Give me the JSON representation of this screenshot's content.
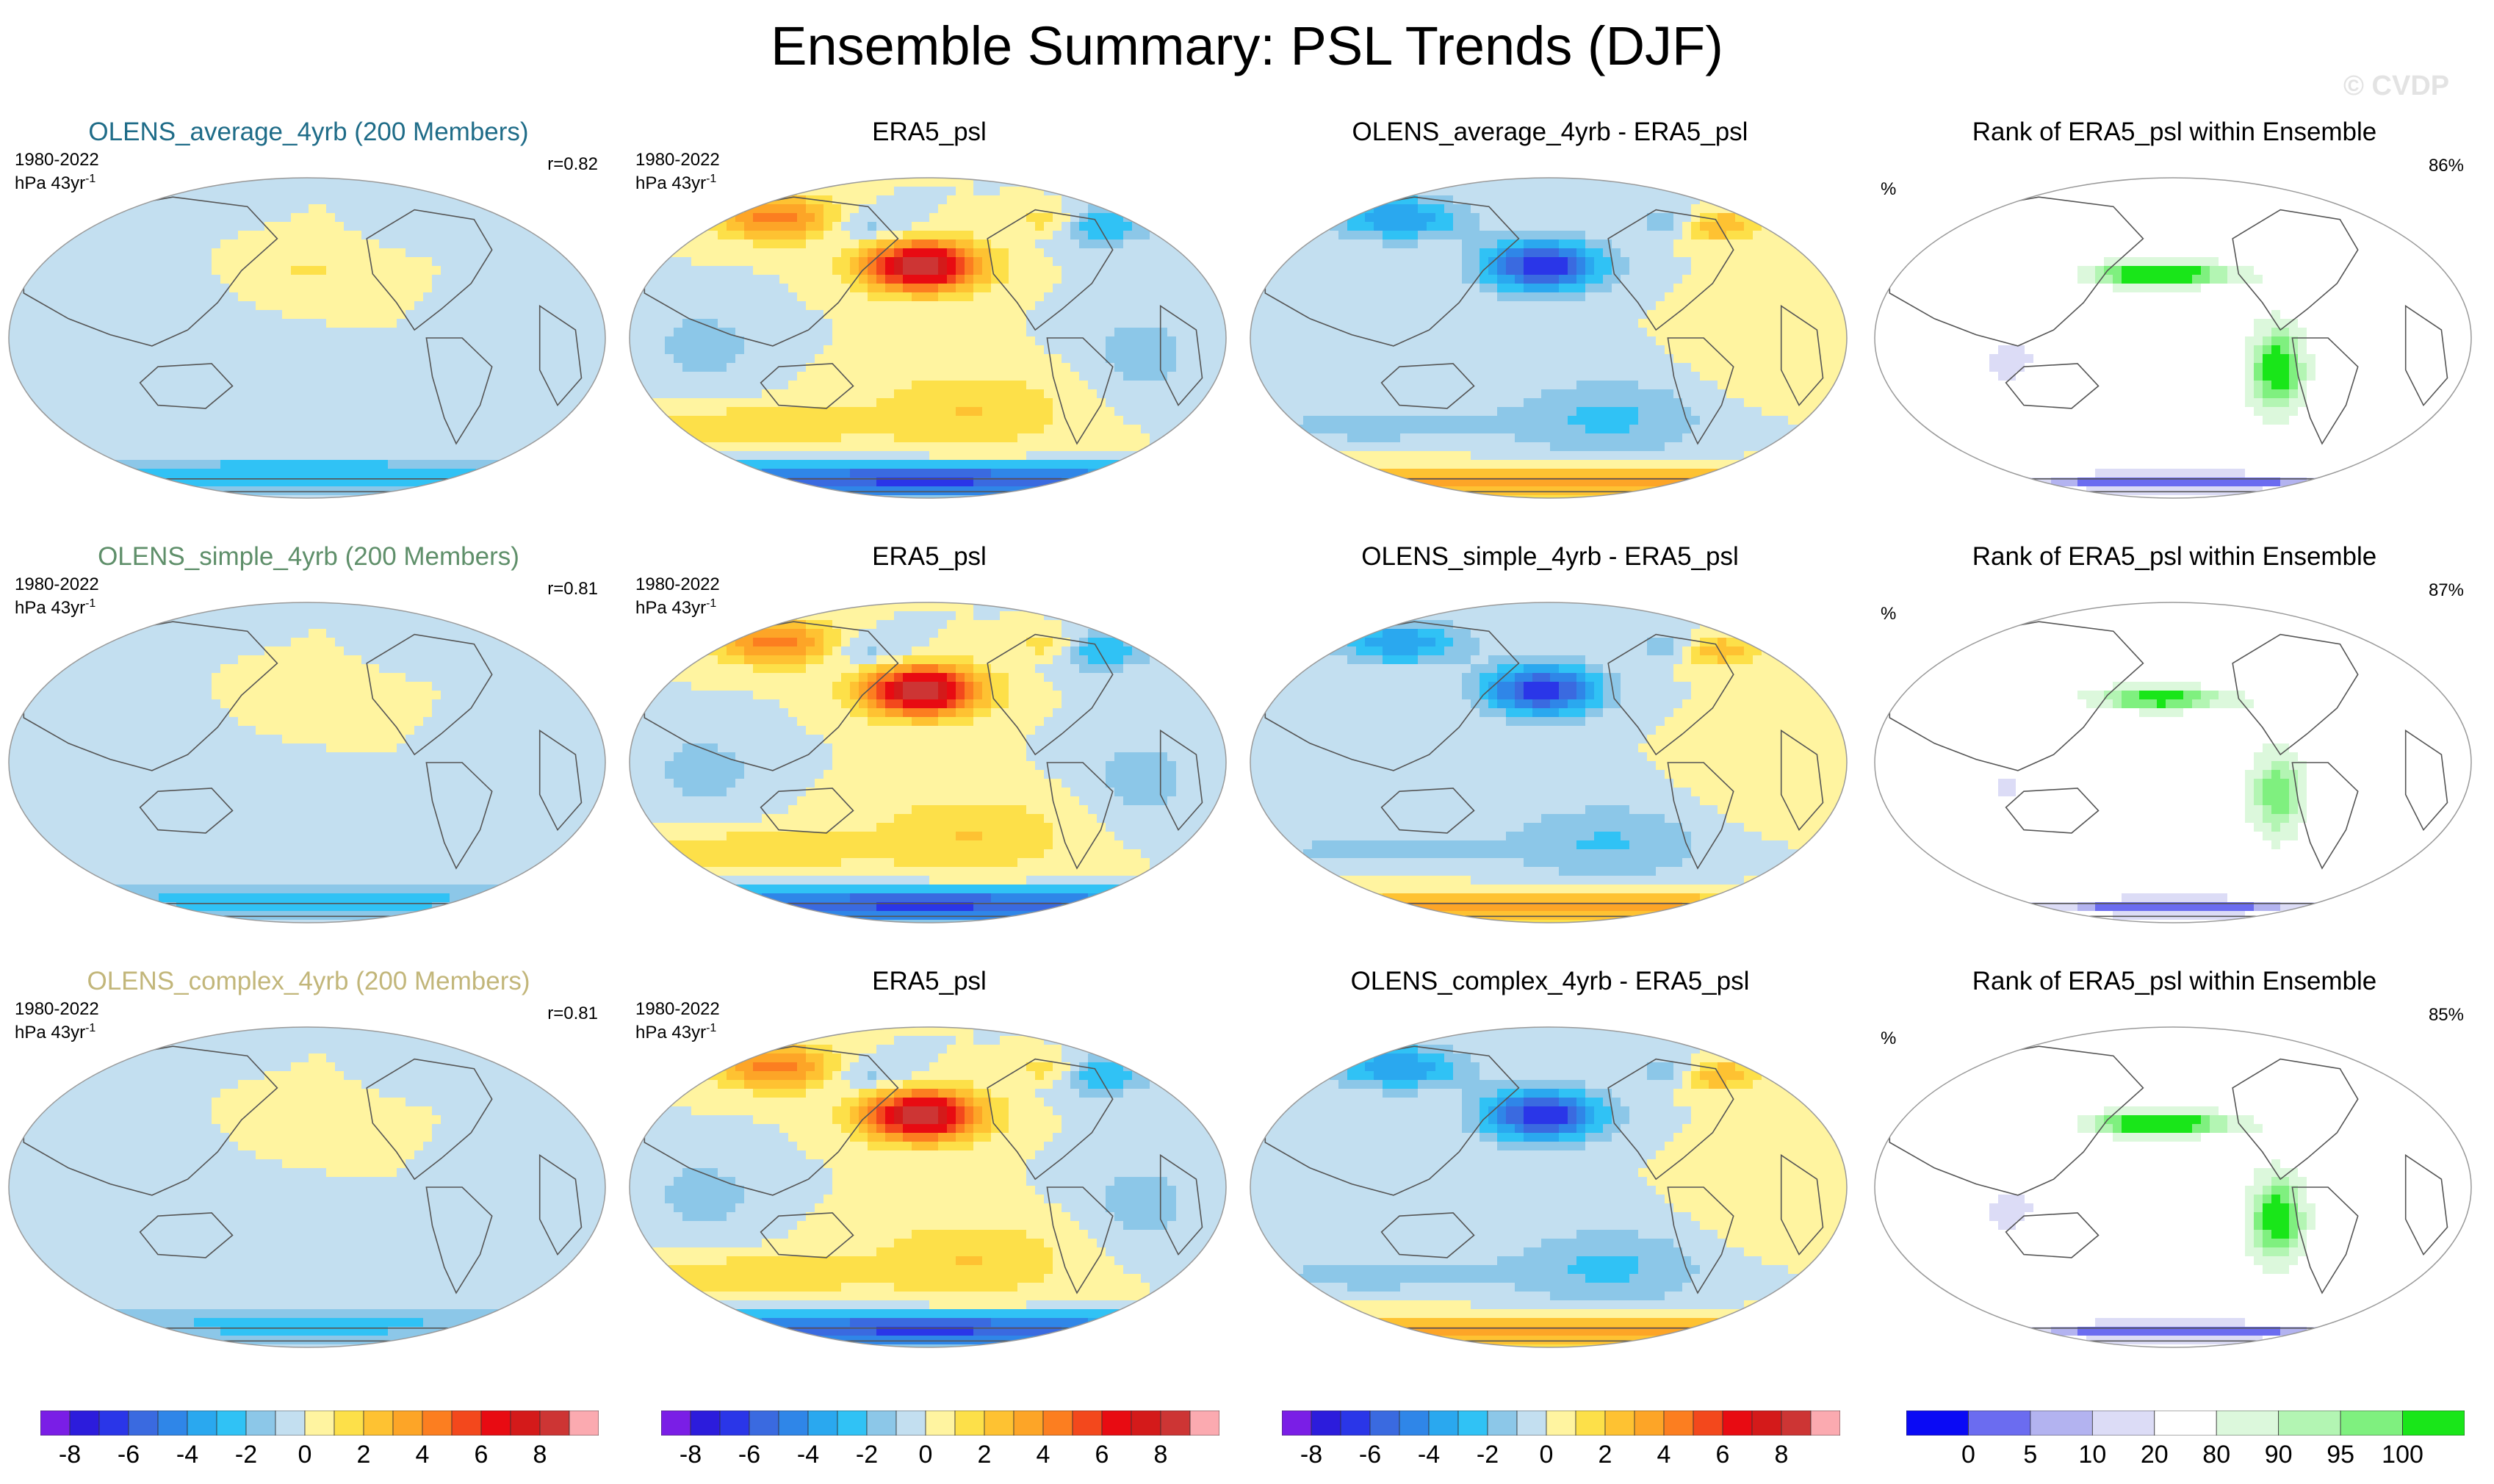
{
  "title": "Ensemble Summary: PSL Trends (DJF)",
  "watermark": "© CVDP",
  "rows": [
    {
      "ensemble": {
        "title": "OLENS_average_4yrb (200 Members)",
        "title_color": "#1f6c88",
        "period": "1980-2022",
        "units": "hPa 43yr",
        "units_exp": "-1",
        "corr": "r=0.82",
        "style": "ens",
        "strength": 0.6
      },
      "obs": {
        "title": "ERA5_psl",
        "period": "1980-2022",
        "units": "hPa 43yr",
        "units_exp": "-1",
        "style": "obs",
        "strength": 1.0
      },
      "diff": {
        "title": "OLENS_average_4yrb - ERA5_psl",
        "style": "diff",
        "strength": 1.0
      },
      "rank": {
        "title": "Rank of ERA5_psl within Ensemble",
        "unit": "%",
        "value": "86%",
        "style": "rank",
        "strength": 1.0
      }
    },
    {
      "ensemble": {
        "title": "OLENS_simple_4yrb (200 Members)",
        "title_color": "#5f8f6a",
        "period": "1980-2022",
        "units": "hPa 43yr",
        "units_exp": "-1",
        "corr": "r=0.81",
        "style": "ens",
        "strength": 0.55
      },
      "obs": {
        "title": "ERA5_psl",
        "period": "1980-2022",
        "units": "hPa 43yr",
        "units_exp": "-1",
        "style": "obs",
        "strength": 1.0
      },
      "diff": {
        "title": "OLENS_simple_4yrb - ERA5_psl",
        "style": "diff",
        "strength": 0.95
      },
      "rank": {
        "title": "Rank of ERA5_psl within Ensemble",
        "unit": "%",
        "value": "87%",
        "style": "rank",
        "strength": 0.9
      }
    },
    {
      "ensemble": {
        "title": "OLENS_complex_4yrb (200 Members)",
        "title_color": "#c2b67a",
        "period": "1980-2022",
        "units": "hPa 43yr",
        "units_exp": "-1",
        "corr": "r=0.81",
        "style": "ens",
        "strength": 0.5
      },
      "obs": {
        "title": "ERA5_psl",
        "period": "1980-2022",
        "units": "hPa 43yr",
        "units_exp": "-1",
        "style": "obs",
        "strength": 1.0
      },
      "diff": {
        "title": "OLENS_complex_4yrb - ERA5_psl",
        "style": "diff",
        "strength": 1.0
      },
      "rank": {
        "title": "Rank of ERA5_psl within Ensemble",
        "unit": "%",
        "value": "85%",
        "style": "rank",
        "strength": 1.0
      }
    }
  ],
  "psl_colorbar": {
    "colors": [
      "#7a1ee6",
      "#2c1cdc",
      "#2a36e8",
      "#3a6ae0",
      "#2f86e8",
      "#2aa8ef",
      "#30c2f5",
      "#8cc7e8",
      "#c3dff0",
      "#fff4a0",
      "#fde049",
      "#fec232",
      "#fda527",
      "#fc7e20",
      "#f3481c",
      "#e80b12",
      "#d41a1a",
      "#cd3534",
      "#fbaab0"
    ],
    "labels": [
      "-8",
      "-6",
      "-4",
      "-2",
      "0",
      "2",
      "4",
      "6",
      "8"
    ]
  },
  "rank_colorbar": {
    "colors": [
      "#0a0af5",
      "#6b6cf0",
      "#b3b3f0",
      "#dcdcf6",
      "#ffffff",
      "#dcf8dc",
      "#b3f5b3",
      "#7ff07f",
      "#19e619"
    ],
    "labels": [
      "0",
      "5",
      "10",
      "20",
      "80",
      "90",
      "95",
      "100"
    ]
  }
}
